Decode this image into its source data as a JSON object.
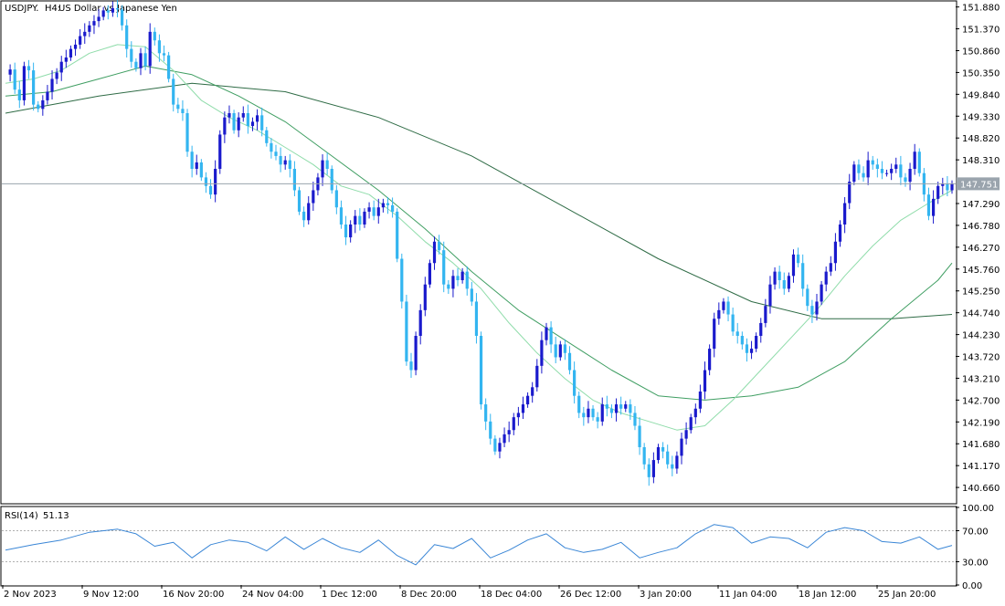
{
  "header": {
    "symbol": "USDJPY.",
    "timeframe": "H4:",
    "description": "US Dollar vs Japanese Yen"
  },
  "rsi_header": {
    "label": "RSI(14)",
    "value": "51.13"
  },
  "colors": {
    "bull_candle": "#1a1acc",
    "bear_candle": "#33b5f0",
    "ma_fast": "#8fdcaa",
    "ma_mid": "#3f9e62",
    "ma_slow": "#2e6b45",
    "rsi_line": "#3a86d6",
    "price_line": "#9aa4ad"
  },
  "chart_data": [
    {
      "type": "candlestick",
      "symbol": "USDJPY.",
      "timeframe": "H4",
      "current_price": 147.751,
      "current_price_label": "147.751",
      "ylim": [
        140.3,
        152.0
      ],
      "y_ticks": [
        "151.880",
        "151.370",
        "150.860",
        "150.350",
        "149.840",
        "149.330",
        "148.820",
        "148.310",
        "147.290",
        "146.780",
        "146.270",
        "145.760",
        "145.250",
        "144.740",
        "144.230",
        "143.720",
        "143.210",
        "142.700",
        "142.190",
        "141.680",
        "141.170",
        "140.660"
      ],
      "x_ticks": [
        "2 Nov 2023",
        "9 Nov 12:00",
        "16 Nov 20:00",
        "24 Nov 04:00",
        "1 Dec 12:00",
        "8 Dec 20:00",
        "18 Dec 04:00",
        "26 Dec 12:00",
        "3 Jan 20:00",
        "11 Jan 04:00",
        "18 Jan 12:00",
        "25 Jan 20:00"
      ],
      "price_path": [
        [
          0,
          150.3
        ],
        [
          1,
          150.42
        ],
        [
          2,
          149.95
        ],
        [
          3,
          149.7
        ],
        [
          4,
          150.5
        ],
        [
          5,
          150.4
        ],
        [
          6,
          149.6
        ],
        [
          7,
          149.5
        ],
        [
          8,
          149.7
        ],
        [
          9,
          149.9
        ],
        [
          10,
          150.2
        ],
        [
          11,
          150.35
        ],
        [
          12,
          150.6
        ],
        [
          13,
          150.7
        ],
        [
          14,
          150.9
        ],
        [
          15,
          151.0
        ],
        [
          16,
          151.2
        ],
        [
          17,
          151.3
        ],
        [
          18,
          151.45
        ],
        [
          19,
          151.55
        ],
        [
          20,
          151.65
        ],
        [
          21,
          151.8
        ],
        [
          22,
          151.75
        ],
        [
          23,
          151.85
        ],
        [
          24,
          151.82
        ],
        [
          25,
          151.45
        ],
        [
          26,
          150.9
        ],
        [
          27,
          150.6
        ],
        [
          28,
          150.45
        ],
        [
          29,
          150.8
        ],
        [
          30,
          150.5
        ],
        [
          31,
          151.3
        ],
        [
          32,
          151.1
        ],
        [
          33,
          150.8
        ],
        [
          34,
          150.75
        ],
        [
          35,
          150.2
        ],
        [
          36,
          149.6
        ],
        [
          37,
          149.5
        ],
        [
          38,
          149.4
        ],
        [
          39,
          148.5
        ],
        [
          40,
          148.1
        ],
        [
          41,
          148.25
        ],
        [
          42,
          147.9
        ],
        [
          43,
          147.7
        ],
        [
          44,
          147.5
        ],
        [
          45,
          148.1
        ],
        [
          46,
          148.9
        ],
        [
          47,
          149.3
        ],
        [
          48,
          149.4
        ],
        [
          49,
          149.0
        ],
        [
          50,
          149.3
        ],
        [
          51,
          149.4
        ],
        [
          52,
          149.1
        ],
        [
          53,
          149.2
        ],
        [
          54,
          149.35
        ],
        [
          55,
          149.0
        ],
        [
          56,
          148.7
        ],
        [
          57,
          148.5
        ],
        [
          58,
          148.4
        ],
        [
          59,
          148.2
        ],
        [
          60,
          148.3
        ],
        [
          61,
          148.1
        ],
        [
          62,
          147.6
        ],
        [
          63,
          147.1
        ],
        [
          64,
          146.9
        ],
        [
          65,
          147.3
        ],
        [
          66,
          147.6
        ],
        [
          67,
          147.9
        ],
        [
          68,
          148.3
        ],
        [
          69,
          148.1
        ],
        [
          70,
          147.6
        ],
        [
          71,
          147.2
        ],
        [
          72,
          146.8
        ],
        [
          73,
          146.5
        ],
        [
          74,
          146.8
        ],
        [
          75,
          147.0
        ],
        [
          76,
          146.8
        ],
        [
          77,
          147.1
        ],
        [
          78,
          147.2
        ],
        [
          79,
          147.0
        ],
        [
          80,
          147.2
        ],
        [
          81,
          147.3
        ],
        [
          82,
          147.25
        ],
        [
          83,
          147.1
        ],
        [
          84,
          146.0
        ],
        [
          85,
          145.0
        ],
        [
          86,
          143.6
        ],
        [
          87,
          143.4
        ],
        [
          88,
          144.2
        ],
        [
          89,
          144.8
        ],
        [
          90,
          145.4
        ],
        [
          91,
          145.9
        ],
        [
          92,
          146.4
        ],
        [
          93,
          146.2
        ],
        [
          94,
          145.4
        ],
        [
          95,
          145.3
        ],
        [
          96,
          145.6
        ],
        [
          97,
          145.5
        ],
        [
          98,
          145.7
        ],
        [
          99,
          145.3
        ],
        [
          100,
          145.0
        ],
        [
          101,
          144.2
        ],
        [
          102,
          142.6
        ],
        [
          103,
          142.2
        ],
        [
          104,
          141.8
        ],
        [
          105,
          141.5
        ],
        [
          106,
          141.7
        ],
        [
          107,
          141.9
        ],
        [
          108,
          142.0
        ],
        [
          109,
          142.3
        ],
        [
          110,
          142.4
        ],
        [
          111,
          142.6
        ],
        [
          112,
          142.8
        ],
        [
          113,
          143.0
        ],
        [
          114,
          143.5
        ],
        [
          115,
          144.1
        ],
        [
          116,
          144.4
        ],
        [
          117,
          144.0
        ],
        [
          118,
          143.7
        ],
        [
          119,
          144.0
        ],
        [
          120,
          143.8
        ],
        [
          121,
          143.4
        ],
        [
          122,
          142.8
        ],
        [
          123,
          142.4
        ],
        [
          124,
          142.3
        ],
        [
          125,
          142.5
        ],
        [
          126,
          142.3
        ],
        [
          127,
          142.2
        ],
        [
          128,
          142.6
        ],
        [
          129,
          142.5
        ],
        [
          130,
          142.4
        ],
        [
          131,
          142.6
        ],
        [
          132,
          142.5
        ],
        [
          133,
          142.6
        ],
        [
          134,
          142.4
        ],
        [
          135,
          142.1
        ],
        [
          136,
          141.6
        ],
        [
          137,
          141.2
        ],
        [
          138,
          140.9
        ],
        [
          139,
          141.3
        ],
        [
          140,
          141.6
        ],
        [
          141,
          141.5
        ],
        [
          142,
          141.2
        ],
        [
          143,
          141.1
        ],
        [
          144,
          141.4
        ],
        [
          145,
          141.8
        ],
        [
          146,
          142.0
        ],
        [
          147,
          142.3
        ],
        [
          148,
          142.5
        ],
        [
          149,
          142.9
        ],
        [
          150,
          143.4
        ],
        [
          151,
          143.9
        ],
        [
          152,
          144.6
        ],
        [
          153,
          144.8
        ],
        [
          154,
          145.0
        ],
        [
          155,
          144.7
        ],
        [
          156,
          144.3
        ],
        [
          157,
          144.2
        ],
        [
          158,
          144.0
        ],
        [
          159,
          143.8
        ],
        [
          160,
          143.9
        ],
        [
          161,
          144.2
        ],
        [
          162,
          144.5
        ],
        [
          163,
          144.9
        ],
        [
          164,
          145.4
        ],
        [
          165,
          145.7
        ],
        [
          166,
          145.5
        ],
        [
          167,
          145.3
        ],
        [
          168,
          145.6
        ],
        [
          169,
          146.1
        ],
        [
          170,
          145.9
        ],
        [
          171,
          145.3
        ],
        [
          172,
          144.9
        ],
        [
          173,
          144.7
        ],
        [
          174,
          145.0
        ],
        [
          175,
          145.4
        ],
        [
          176,
          145.7
        ],
        [
          177,
          145.9
        ],
        [
          178,
          146.4
        ],
        [
          179,
          146.8
        ],
        [
          180,
          147.3
        ],
        [
          181,
          147.8
        ],
        [
          182,
          148.2
        ],
        [
          183,
          148.0
        ],
        [
          184,
          147.9
        ],
        [
          185,
          148.3
        ],
        [
          186,
          148.2
        ],
        [
          187,
          148.1
        ],
        [
          188,
          148.0
        ],
        [
          189,
          148.0
        ],
        [
          190,
          148.1
        ],
        [
          191,
          148.2
        ],
        [
          192,
          147.9
        ],
        [
          193,
          147.8
        ],
        [
          194,
          148.1
        ],
        [
          195,
          148.5
        ],
        [
          196,
          148.0
        ],
        [
          197,
          147.5
        ],
        [
          198,
          147.0
        ],
        [
          199,
          147.4
        ],
        [
          200,
          147.7
        ],
        [
          201,
          147.75
        ],
        [
          202,
          147.6
        ],
        [
          203,
          147.751
        ]
      ],
      "ma_fast_path": [
        [
          0,
          150.1
        ],
        [
          6,
          150.2
        ],
        [
          12,
          150.4
        ],
        [
          18,
          150.8
        ],
        [
          24,
          151.0
        ],
        [
          30,
          150.95
        ],
        [
          36,
          150.4
        ],
        [
          42,
          149.7
        ],
        [
          48,
          149.3
        ],
        [
          54,
          149.0
        ],
        [
          60,
          148.6
        ],
        [
          66,
          148.2
        ],
        [
          72,
          147.7
        ],
        [
          78,
          147.5
        ],
        [
          84,
          147.0
        ],
        [
          90,
          146.4
        ],
        [
          96,
          145.9
        ],
        [
          102,
          145.3
        ],
        [
          108,
          144.5
        ],
        [
          114,
          143.8
        ],
        [
          120,
          143.2
        ],
        [
          126,
          142.7
        ],
        [
          132,
          142.4
        ],
        [
          138,
          142.2
        ],
        [
          144,
          142.0
        ],
        [
          150,
          142.1
        ],
        [
          156,
          142.7
        ],
        [
          162,
          143.4
        ],
        [
          168,
          144.1
        ],
        [
          174,
          144.8
        ],
        [
          180,
          145.6
        ],
        [
          186,
          146.3
        ],
        [
          192,
          146.9
        ],
        [
          198,
          147.3
        ],
        [
          203,
          147.6
        ]
      ],
      "ma_mid_path": [
        [
          0,
          149.8
        ],
        [
          10,
          149.9
        ],
        [
          20,
          150.2
        ],
        [
          30,
          150.5
        ],
        [
          40,
          150.3
        ],
        [
          50,
          149.8
        ],
        [
          60,
          149.2
        ],
        [
          70,
          148.4
        ],
        [
          80,
          147.6
        ],
        [
          90,
          146.7
        ],
        [
          100,
          145.7
        ],
        [
          110,
          144.8
        ],
        [
          120,
          144.1
        ],
        [
          130,
          143.4
        ],
        [
          140,
          142.8
        ],
        [
          150,
          142.7
        ],
        [
          160,
          142.8
        ],
        [
          170,
          143.0
        ],
        [
          180,
          143.6
        ],
        [
          190,
          144.6
        ],
        [
          200,
          145.5
        ],
        [
          203,
          145.9
        ]
      ],
      "ma_slow_path": [
        [
          0,
          149.4
        ],
        [
          20,
          149.8
        ],
        [
          40,
          150.1
        ],
        [
          60,
          149.9
        ],
        [
          80,
          149.3
        ],
        [
          100,
          148.4
        ],
        [
          120,
          147.2
        ],
        [
          140,
          146.0
        ],
        [
          160,
          145.0
        ],
        [
          175,
          144.6
        ],
        [
          190,
          144.6
        ],
        [
          203,
          144.7
        ]
      ],
      "rsi": {
        "period": 14,
        "value": 51.13,
        "ylim": [
          0,
          100
        ],
        "levels": [
          70,
          30
        ],
        "y_ticks": [
          "100.00",
          "70.00",
          "30.00",
          "0.00"
        ],
        "path": [
          [
            0,
            45
          ],
          [
            6,
            52
          ],
          [
            12,
            58
          ],
          [
            18,
            68
          ],
          [
            24,
            72
          ],
          [
            28,
            66
          ],
          [
            32,
            50
          ],
          [
            36,
            55
          ],
          [
            40,
            35
          ],
          [
            44,
            52
          ],
          [
            48,
            58
          ],
          [
            52,
            55
          ],
          [
            56,
            44
          ],
          [
            60,
            62
          ],
          [
            64,
            46
          ],
          [
            68,
            60
          ],
          [
            72,
            48
          ],
          [
            76,
            42
          ],
          [
            80,
            58
          ],
          [
            84,
            38
          ],
          [
            88,
            26
          ],
          [
            92,
            52
          ],
          [
            96,
            47
          ],
          [
            100,
            60
          ],
          [
            104,
            35
          ],
          [
            108,
            45
          ],
          [
            112,
            58
          ],
          [
            116,
            66
          ],
          [
            120,
            48
          ],
          [
            124,
            42
          ],
          [
            128,
            46
          ],
          [
            132,
            55
          ],
          [
            136,
            35
          ],
          [
            140,
            42
          ],
          [
            144,
            48
          ],
          [
            148,
            66
          ],
          [
            152,
            78
          ],
          [
            156,
            74
          ],
          [
            160,
            54
          ],
          [
            164,
            62
          ],
          [
            168,
            60
          ],
          [
            172,
            48
          ],
          [
            176,
            68
          ],
          [
            180,
            74
          ],
          [
            184,
            70
          ],
          [
            188,
            56
          ],
          [
            192,
            54
          ],
          [
            196,
            62
          ],
          [
            200,
            46
          ],
          [
            203,
            51
          ]
        ]
      }
    }
  ]
}
